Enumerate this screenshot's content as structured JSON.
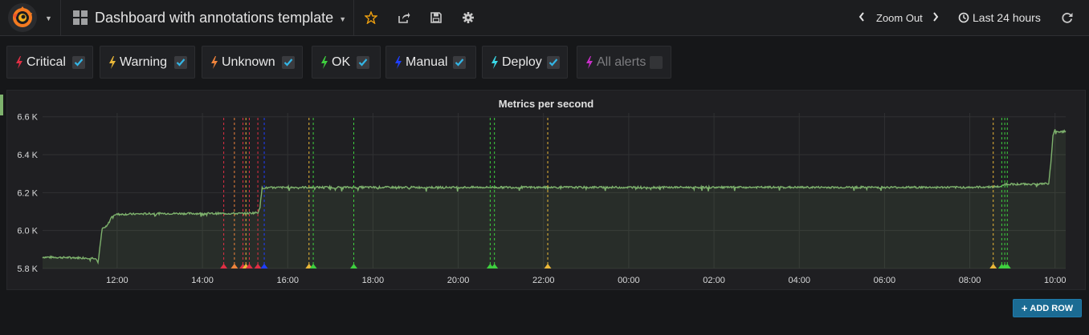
{
  "navbar": {
    "dashboard_title": "Dashboard with annotations template",
    "zoom_out_label": "Zoom Out",
    "time_range_label": "Last 24 hours"
  },
  "annotations": [
    {
      "label": "Critical",
      "color": "#e02f44",
      "checked": true
    },
    {
      "label": "Warning",
      "color": "#eab839",
      "checked": true
    },
    {
      "label": "Unknown",
      "color": "#ef843c",
      "checked": true
    },
    {
      "label": "OK",
      "color": "#3fcf3f",
      "checked": true
    },
    {
      "label": "Manual",
      "color": "#1f3fff",
      "checked": true
    },
    {
      "label": "Deploy",
      "color": "#3ad9e8",
      "checked": true
    },
    {
      "label": "All alerts",
      "color": "#c92fc9",
      "checked": false
    }
  ],
  "panel": {
    "title": "Metrics per second",
    "add_row_label": "ADD ROW"
  },
  "chart_data": {
    "type": "line",
    "title": "Metrics per second",
    "xlabel": "",
    "ylabel": "",
    "x_ticks": [
      "12:00",
      "14:00",
      "16:00",
      "18:00",
      "20:00",
      "22:00",
      "00:00",
      "02:00",
      "04:00",
      "06:00",
      "08:00",
      "10:00"
    ],
    "y_ticks": [
      "5.8 K",
      "6.0 K",
      "6.2 K",
      "6.4 K",
      "6.6 K"
    ],
    "ylim": [
      5800,
      6620
    ],
    "x_start_hour": 10.25,
    "x_end_hour": 34.25,
    "series": [
      {
        "color": "#7eb26d",
        "points": [
          [
            10.25,
            5860
          ],
          [
            11.5,
            5855
          ],
          [
            11.55,
            5830
          ],
          [
            11.65,
            6010
          ],
          [
            11.75,
            6020
          ],
          [
            11.8,
            6040
          ],
          [
            11.9,
            6085
          ],
          [
            13.0,
            6090
          ],
          [
            14.0,
            6090
          ],
          [
            15.0,
            6090
          ],
          [
            15.3,
            6095
          ],
          [
            15.35,
            6125
          ],
          [
            15.4,
            6225
          ],
          [
            16.0,
            6228
          ],
          [
            18.0,
            6228
          ],
          [
            20.0,
            6228
          ],
          [
            22.0,
            6228
          ],
          [
            24.0,
            6228
          ],
          [
            26.0,
            6228
          ],
          [
            28.0,
            6228
          ],
          [
            30.0,
            6228
          ],
          [
            32.0,
            6228
          ],
          [
            32.75,
            6232
          ],
          [
            32.8,
            6245
          ],
          [
            33.5,
            6245
          ],
          [
            33.85,
            6248
          ],
          [
            33.9,
            6350
          ],
          [
            33.95,
            6500
          ],
          [
            34.0,
            6530
          ],
          [
            34.1,
            6520
          ],
          [
            34.25,
            6525
          ]
        ]
      }
    ],
    "annotation_events": [
      {
        "hour": 14.5,
        "type": "Critical"
      },
      {
        "hour": 14.75,
        "type": "Unknown"
      },
      {
        "hour": 14.95,
        "type": "Critical"
      },
      {
        "hour": 15.02,
        "type": "Warning"
      },
      {
        "hour": 15.1,
        "type": "Critical"
      },
      {
        "hour": 15.3,
        "type": "Critical"
      },
      {
        "hour": 15.45,
        "type": "Manual"
      },
      {
        "hour": 16.5,
        "type": "Warning"
      },
      {
        "hour": 16.6,
        "type": "OK"
      },
      {
        "hour": 17.55,
        "type": "OK"
      },
      {
        "hour": 20.75,
        "type": "OK"
      },
      {
        "hour": 20.85,
        "type": "OK"
      },
      {
        "hour": 22.1,
        "type": "Warning"
      },
      {
        "hour": 32.55,
        "type": "Warning"
      },
      {
        "hour": 32.75,
        "type": "OK"
      },
      {
        "hour": 32.82,
        "type": "OK"
      },
      {
        "hour": 32.88,
        "type": "OK"
      }
    ]
  }
}
